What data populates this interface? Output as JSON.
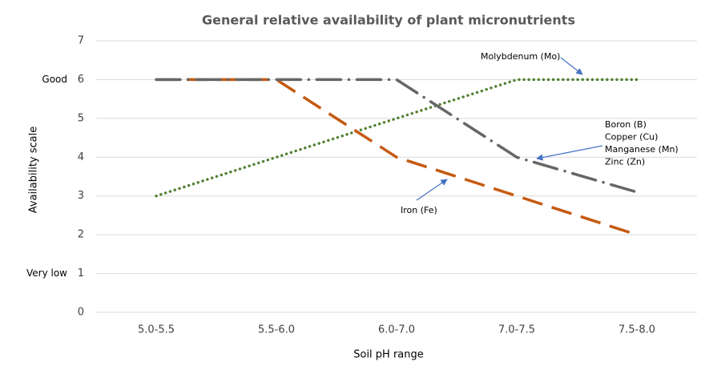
{
  "chart_data": {
    "type": "line",
    "title": "General relative availability of plant micronutrients",
    "x_label": "Soil pH range",
    "y_label": "Availability scale",
    "categories": [
      "5.0-5.5",
      "5.5-6.0",
      "6.0-7.0",
      "7.0-7.5",
      "7.5-8.0"
    ],
    "ylim": [
      0,
      7
    ],
    "yticks": [
      0,
      1,
      2,
      3,
      4,
      5,
      6,
      7
    ],
    "scale_labels": [
      {
        "value": 6,
        "label": "Good"
      },
      {
        "value": 1,
        "label": "Very low"
      }
    ],
    "grid": true,
    "series": [
      {
        "label_lines": [
          "Molybdenum (Mo)"
        ],
        "color": "#548235",
        "style": "dotted",
        "values": [
          3,
          4,
          5,
          6,
          6
        ]
      },
      {
        "label_lines": [
          "Iron (Fe)"
        ],
        "color": "#c55a11",
        "style": "dashed",
        "values": [
          6,
          6,
          4,
          3,
          2
        ]
      },
      {
        "label_lines": [
          "Boron (B)",
          "Copper (Cu)",
          "Manganese (Mn)",
          "Zinc (Zn)"
        ],
        "color": "#666666",
        "style": "dashdot",
        "values": [
          6,
          6,
          6,
          4,
          3.1
        ]
      }
    ]
  }
}
